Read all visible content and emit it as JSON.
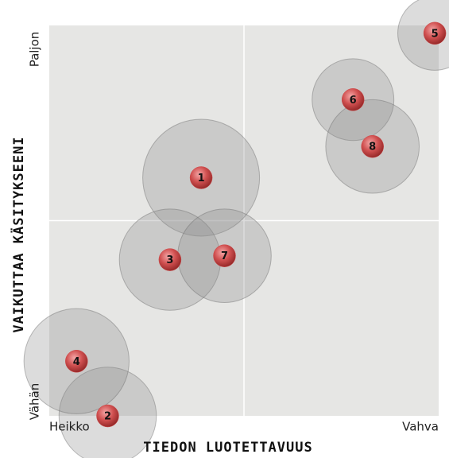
{
  "chart_data": {
    "type": "bubble",
    "xlabel": "TIEDON LUOTETTAVUUS",
    "ylabel": "VAIKUTTAA KÄSITYKSEENI",
    "xlim": [
      0,
      10
    ],
    "ylim": [
      0,
      10
    ],
    "xticks": [
      {
        "value": 0,
        "label": "Heikko"
      },
      {
        "value": 10,
        "label": "Vahva"
      }
    ],
    "yticks": [
      {
        "value": 0,
        "label": "Vähän"
      },
      {
        "value": 10,
        "label": "Paljon"
      }
    ],
    "labels": [
      "1",
      "2",
      "3",
      "4",
      "5",
      "6",
      "7",
      "8"
    ],
    "x": [
      3.9,
      1.5,
      3.1,
      0.7,
      9.9,
      7.8,
      4.5,
      8.3
    ],
    "values": [
      6.1,
      0.0,
      4.0,
      1.4,
      9.8,
      8.1,
      4.1,
      6.9
    ],
    "sizes": [
      1.5,
      1.25,
      1.3,
      1.35,
      0.95,
      1.05,
      1.2,
      1.2
    ],
    "color": "#d04848"
  }
}
